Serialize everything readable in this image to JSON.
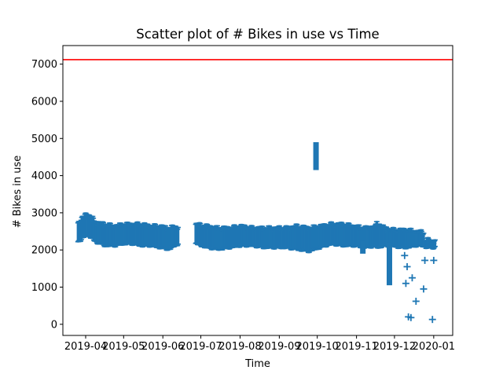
{
  "chart_data": {
    "type": "scatter",
    "title": "Scatter plot of # Bikes in use vs Time",
    "xlabel": "Time",
    "ylabel": "# Bikes in use",
    "x_tick_labels": [
      "2019-04",
      "2019-05",
      "2019-06",
      "2019-07",
      "2019-08",
      "2019-09",
      "2019-10",
      "2019-11",
      "2019-12",
      "2020-01"
    ],
    "x_ticks": [
      "2019-04-01",
      "2019-05-01",
      "2019-06-01",
      "2019-07-01",
      "2019-08-01",
      "2019-09-01",
      "2019-10-01",
      "2019-11-01",
      "2019-12-01",
      "2020-01-01"
    ],
    "xlim": [
      "2019-03-14",
      "2020-01-16"
    ],
    "y_ticks": [
      0,
      1000,
      2000,
      3000,
      4000,
      5000,
      6000,
      7000
    ],
    "ylim": [
      -300,
      7500
    ],
    "marker": "+",
    "marker_color": "#1f77b4",
    "reference_line": {
      "y": 7120,
      "color": "#ff0000"
    },
    "bands": [
      {
        "from": "2019-03-26",
        "to": "2019-06-13",
        "min": [
          2200,
          2400,
          2200,
          2100,
          2100,
          2150,
          2150,
          2100,
          2100,
          2050,
          2000,
          2150
        ],
        "max": [
          2750,
          3000,
          2750,
          2700,
          2650,
          2700,
          2700,
          2700,
          2650,
          2650,
          2600,
          2650
        ]
      },
      {
        "from": "2019-06-27",
        "to": "2019-11-17",
        "min": [
          2150,
          2050,
          2000,
          2050,
          2100,
          2100,
          2050,
          2050,
          2050,
          2000,
          1950,
          2050,
          2150,
          2100,
          2100,
          2050,
          2100
        ],
        "max": [
          2700,
          2650,
          2600,
          2600,
          2650,
          2600,
          2600,
          2600,
          2600,
          2650,
          2600,
          2650,
          2700,
          2700,
          2650,
          2600,
          2650
        ]
      },
      {
        "from": "2019-11-17",
        "to": "2019-12-24",
        "min": [
          2050,
          2100,
          2100,
          2050,
          2050,
          2100,
          2100
        ],
        "max": [
          2750,
          2600,
          2550,
          2550,
          2550,
          2500,
          2500
        ]
      },
      {
        "from": "2019-12-26",
        "to": "2020-01-02",
        "min": [
          2050,
          2050,
          2050
        ],
        "max": [
          2300,
          2250,
          2250
        ]
      }
    ],
    "vertical_runs": [
      {
        "x": "2019-09-30",
        "min": 4150,
        "max": 4900
      },
      {
        "x": "2019-11-27",
        "min": 1050,
        "max": 2200
      },
      {
        "x": "2019-11-06",
        "min": 1900,
        "max": 2250
      }
    ],
    "points": [
      {
        "x": "2019-12-09",
        "y": 1850
      },
      {
        "x": "2019-12-10",
        "y": 1100
      },
      {
        "x": "2019-12-11",
        "y": 1550
      },
      {
        "x": "2019-12-12",
        "y": 200
      },
      {
        "x": "2019-12-14",
        "y": 180
      },
      {
        "x": "2019-12-15",
        "y": 1250
      },
      {
        "x": "2019-12-18",
        "y": 620
      },
      {
        "x": "2019-12-24",
        "y": 950
      },
      {
        "x": "2019-12-25",
        "y": 1720
      },
      {
        "x": "2019-12-31",
        "y": 130
      },
      {
        "x": "2020-01-01",
        "y": 1720
      }
    ]
  }
}
